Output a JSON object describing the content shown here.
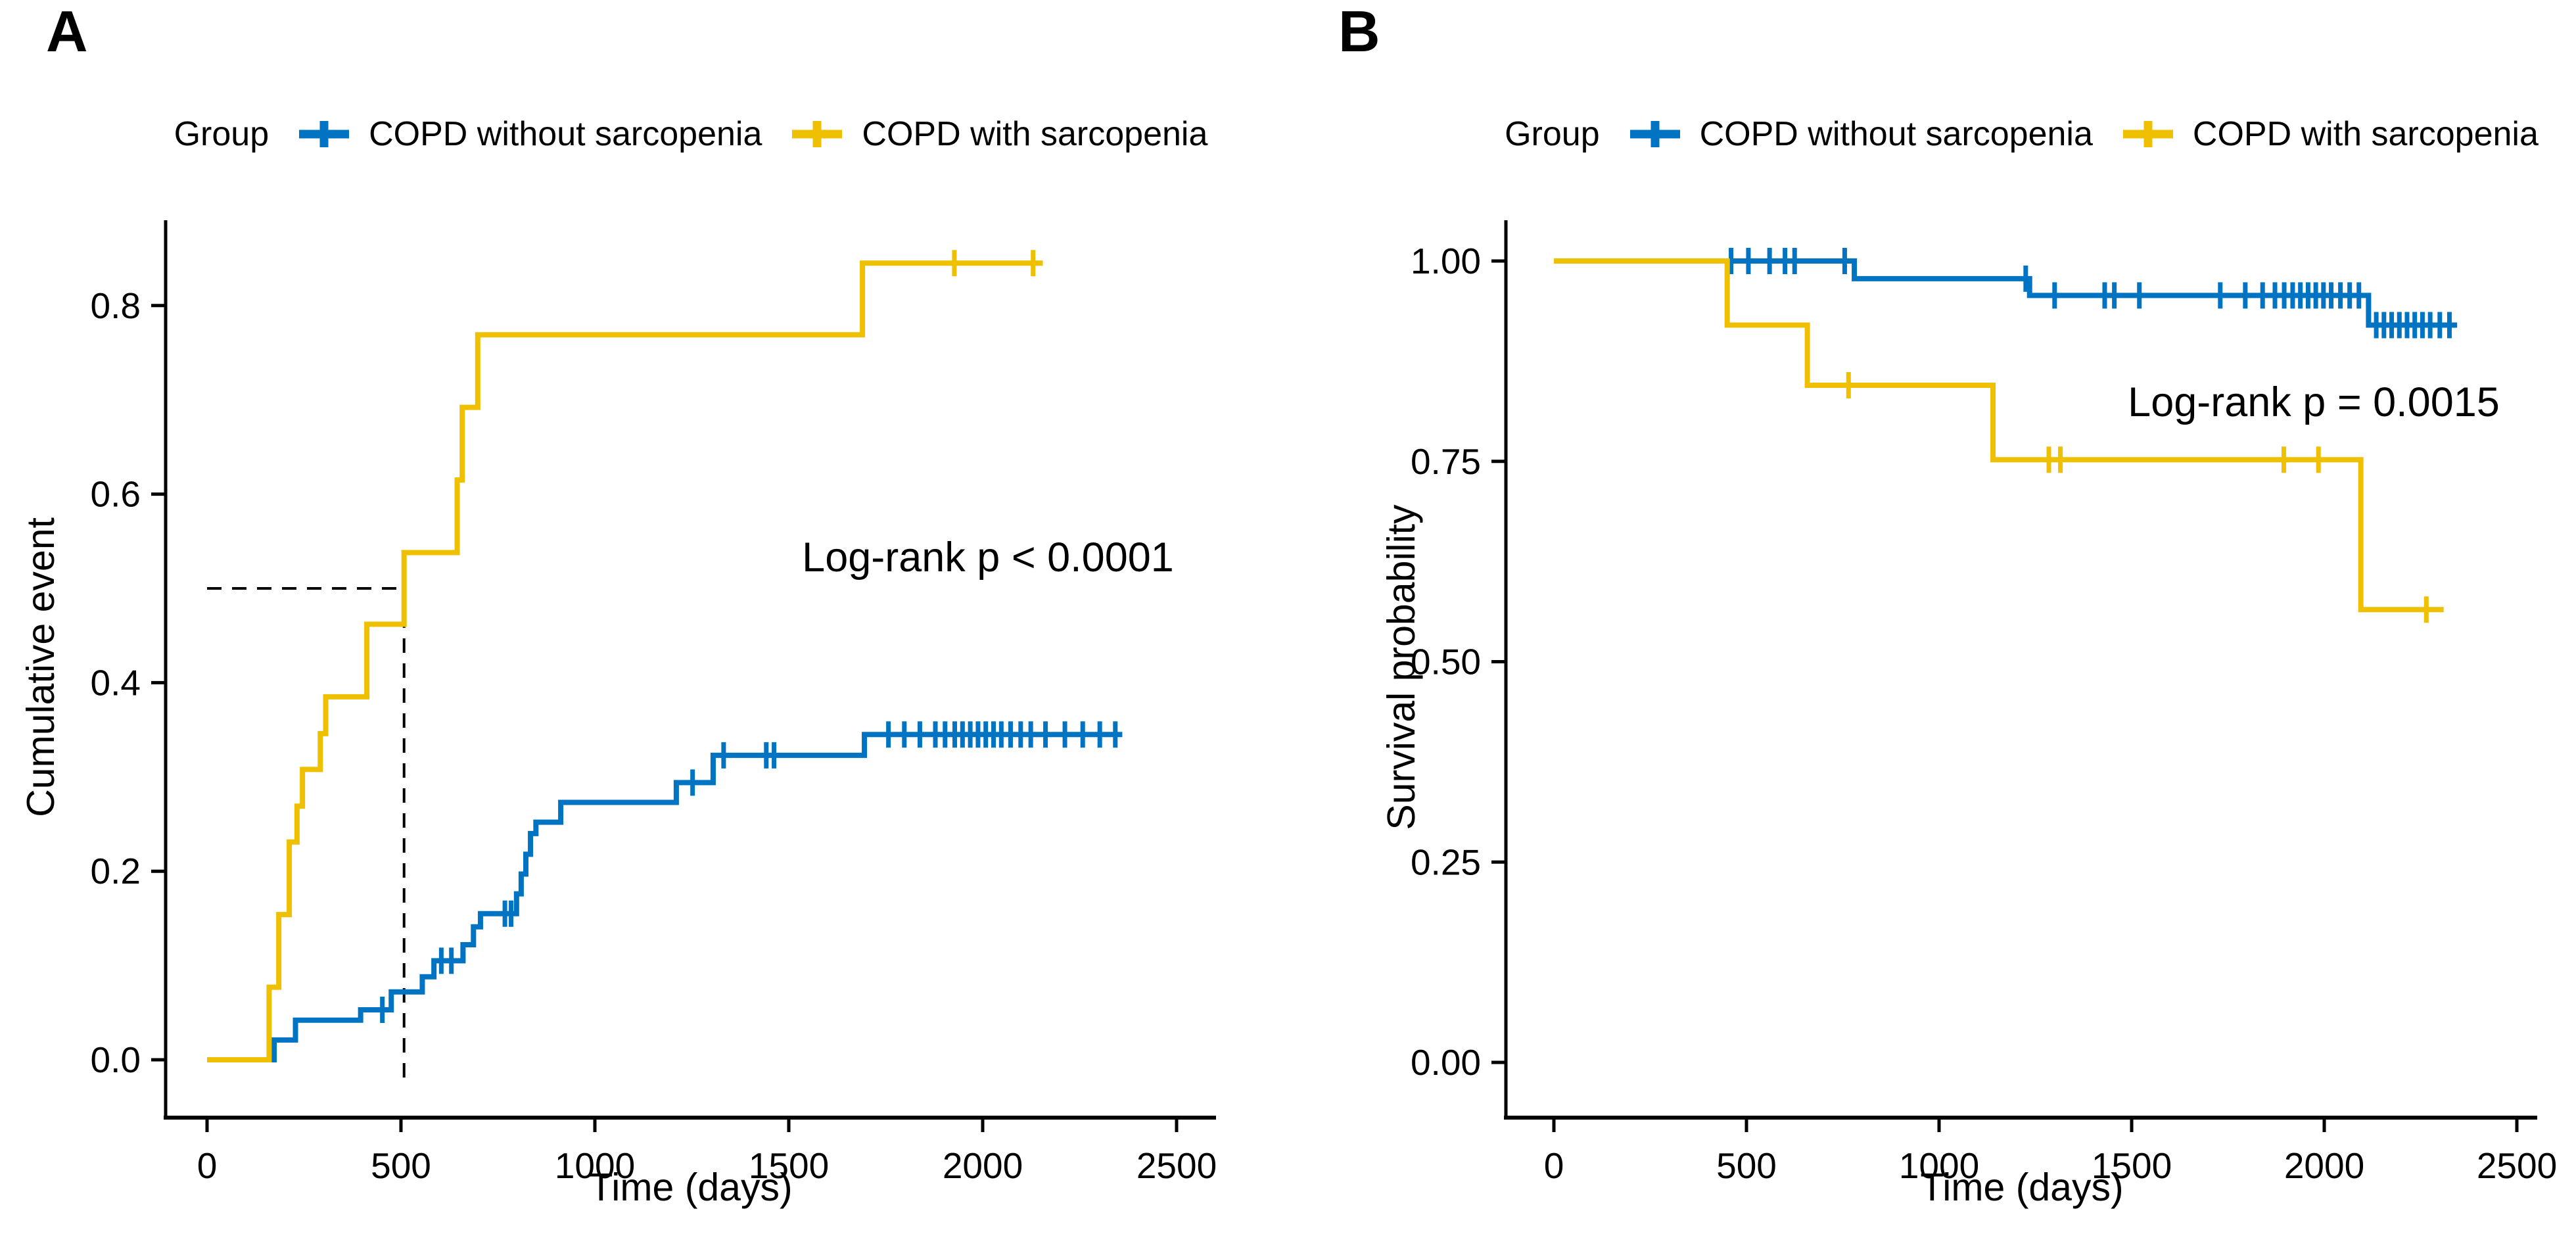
{
  "figure": {
    "description": "Kaplan-Meier two-panel figure comparing COPD without sarcopenia vs COPD with sarcopenia"
  },
  "chart_data": [
    {
      "panel_label": "A",
      "type": "line",
      "subtype": "kaplan-meier-step",
      "title": "",
      "xlabel": "Time (days)",
      "ylabel": "Cumulative event",
      "xlim": [
        0,
        2600
      ],
      "xticks": [
        0,
        500,
        1000,
        1500,
        2000,
        2500
      ],
      "xtick_labels": [
        "0",
        "500",
        "1000",
        "1500",
        "2000",
        "2500"
      ],
      "ylim": [
        0,
        0.87
      ],
      "yticks": [
        0,
        0.2,
        0.4,
        0.6,
        0.8
      ],
      "ytick_labels": [
        "0.0",
        "0.2",
        "0.4",
        "0.6",
        "0.8"
      ],
      "grid": false,
      "legend_title": "Group",
      "legend_position": "top",
      "annotation": {
        "text": "Log-rank p < 0.0001",
        "at_day": 2015,
        "at_value": 0.55
      },
      "median_guide": {
        "value": 0.5,
        "day": 508,
        "style": "dashed"
      },
      "series": [
        {
          "name": "COPD without sarcopenia",
          "color": "#0073C2",
          "start_value": 0,
          "steps": [
            [
              173,
              0.021
            ],
            [
              228,
              0.042
            ],
            [
              396,
              0.053
            ],
            [
              475,
              0.072
            ],
            [
              555,
              0.088
            ],
            [
              585,
              0.105
            ],
            [
              660,
              0.122
            ],
            [
              687,
              0.141
            ],
            [
              705,
              0.155
            ],
            [
              798,
              0.176
            ],
            [
              810,
              0.197
            ],
            [
              822,
              0.218
            ],
            [
              834,
              0.24
            ],
            [
              848,
              0.252
            ],
            [
              912,
              0.273
            ],
            [
              1210,
              0.294
            ],
            [
              1305,
              0.323
            ],
            [
              1695,
              0.345
            ]
          ],
          "end_day": 2360,
          "censor_days": [
            452,
            604,
            630,
            768,
            784,
            1252,
            1332,
            1442,
            1462,
            1757,
            1798,
            1838,
            1878,
            1903,
            1928,
            1948,
            1968,
            1988,
            2008,
            2028,
            2048,
            2072,
            2098,
            2124,
            2162,
            2212,
            2258,
            2302,
            2342
          ]
        },
        {
          "name": "COPD with sarcopenia",
          "color": "#EFC000",
          "start_value": 0,
          "steps": [
            [
              160,
              0.077
            ],
            [
              185,
              0.154
            ],
            [
              212,
              0.231
            ],
            [
              232,
              0.269
            ],
            [
              246,
              0.308
            ],
            [
              292,
              0.346
            ],
            [
              306,
              0.385
            ],
            [
              412,
              0.462
            ],
            [
              508,
              0.538
            ],
            [
              645,
              0.615
            ],
            [
              658,
              0.692
            ],
            [
              698,
              0.769
            ],
            [
              1690,
              0.845
            ]
          ],
          "end_day": 2155,
          "censor_days": [
            1927,
            2130
          ]
        }
      ]
    },
    {
      "panel_label": "B",
      "type": "line",
      "subtype": "kaplan-meier-step",
      "title": "",
      "xlabel": "Time (days)",
      "ylabel": "Survival probability",
      "xlim": [
        0,
        2600
      ],
      "xticks": [
        0,
        500,
        1000,
        1500,
        2000,
        2500
      ],
      "xtick_labels": [
        "0",
        "500",
        "1000",
        "1500",
        "2000",
        "2500"
      ],
      "ylim": [
        0,
        1.05
      ],
      "yticks": [
        0,
        0.25,
        0.5,
        0.75,
        1.0
      ],
      "ytick_labels": [
        "0.00",
        "0.25",
        "0.50",
        "0.75",
        "1.00"
      ],
      "grid": false,
      "legend_title": "Group",
      "legend_position": "top",
      "annotation": {
        "text": "Log-rank p = 0.0015",
        "at_day": 1975,
        "at_value": 0.825
      },
      "median_guide": null,
      "series": [
        {
          "name": "COPD without sarcopenia",
          "color": "#0073C2",
          "start_value": 1,
          "steps": [
            [
              780,
              0.978
            ],
            [
              1235,
              0.957
            ],
            [
              2115,
              0.92
            ]
          ],
          "end_day": 2345,
          "censor_days": [
            460,
            505,
            560,
            600,
            625,
            755,
            1225,
            1300,
            1430,
            1455,
            1520,
            1730,
            1795,
            1840,
            1872,
            1896,
            1918,
            1938,
            1958,
            1978,
            1998,
            2018,
            2042,
            2066,
            2090,
            2135,
            2155,
            2175,
            2195,
            2215,
            2235,
            2255,
            2275,
            2300,
            2325
          ]
        },
        {
          "name": "COPD with sarcopenia",
          "color": "#EFC000",
          "start_value": 1,
          "steps": [
            [
              450,
              0.92
            ],
            [
              658,
              0.845
            ],
            [
              1140,
              0.752
            ],
            [
              2095,
              0.565
            ]
          ],
          "end_day": 2310,
          "censor_days": [
            765,
            1285,
            1315,
            1895,
            1985,
            2265
          ]
        }
      ]
    }
  ]
}
